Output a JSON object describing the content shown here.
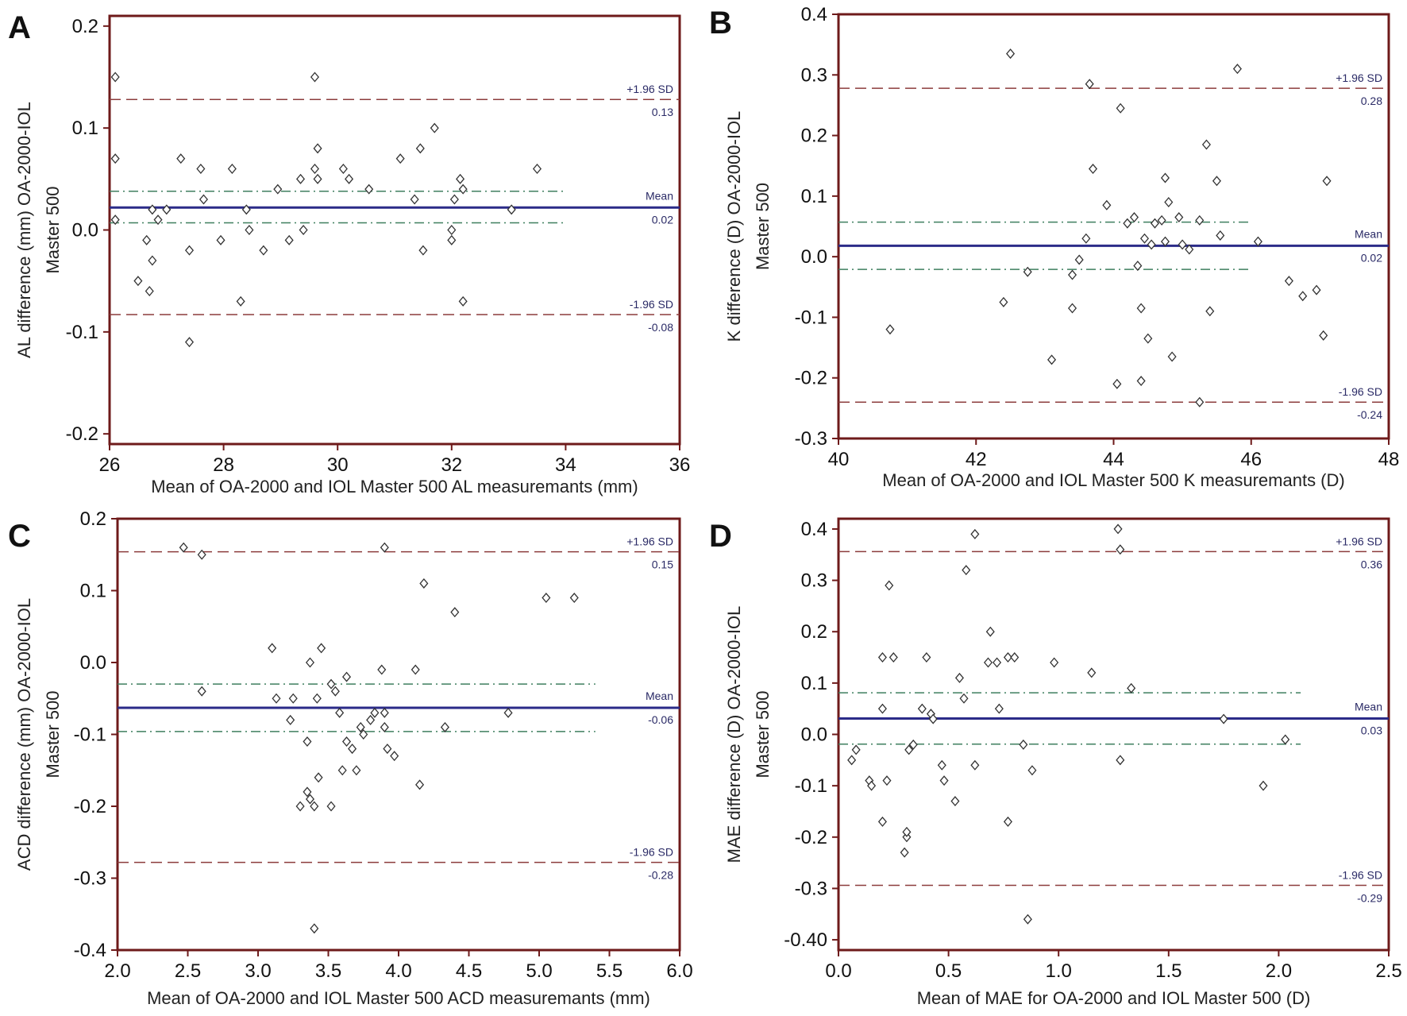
{
  "figure": {
    "panels": [
      "A",
      "B",
      "C",
      "D"
    ]
  },
  "chart_data": [
    {
      "panel": "A",
      "type": "scatter",
      "xlabel": "Mean of OA-2000 and IOL Master 500 AL measuremants (mm)",
      "ylabel": [
        "AL difference (mm) OA-2000-IOL",
        "Master 500"
      ],
      "xlim": [
        26,
        36
      ],
      "ylim": [
        -0.21,
        0.21
      ],
      "xticks": [
        26,
        28,
        30,
        32,
        34,
        36
      ],
      "yticks": [
        0.2,
        0.1,
        0.0,
        -0.1,
        -0.2
      ],
      "ytick_labels": [
        "0.2",
        "0.1",
        "0.0",
        "-0.1",
        "-0.2"
      ],
      "xtick_labels": [
        "26",
        "28",
        "30",
        "32",
        "34",
        "36"
      ],
      "mean": {
        "value": 0.022,
        "label": "Mean",
        "value_label": "0.02",
        "ci": [
          0.038,
          0.007
        ],
        "ci_x_end": 34
      },
      "upper_loa": {
        "value": 0.128,
        "label": "+1.96 SD",
        "value_label": "0.13"
      },
      "lower_loa": {
        "value": -0.083,
        "label": "-1.96 SD",
        "value_label": "-0.08"
      },
      "points": [
        [
          26.1,
          0.15
        ],
        [
          26.1,
          0.07
        ],
        [
          26.1,
          0.01
        ],
        [
          26.5,
          -0.05
        ],
        [
          26.65,
          -0.01
        ],
        [
          26.7,
          -0.06
        ],
        [
          26.75,
          0.02
        ],
        [
          26.75,
          -0.03
        ],
        [
          26.85,
          0.01
        ],
        [
          27.0,
          0.02
        ],
        [
          27.25,
          0.07
        ],
        [
          27.4,
          -0.02
        ],
        [
          27.4,
          -0.11
        ],
        [
          27.6,
          0.06
        ],
        [
          27.65,
          0.03
        ],
        [
          27.95,
          -0.01
        ],
        [
          28.15,
          0.06
        ],
        [
          28.3,
          -0.07
        ],
        [
          28.4,
          0.02
        ],
        [
          28.45,
          0.0
        ],
        [
          28.7,
          -0.02
        ],
        [
          28.95,
          0.04
        ],
        [
          29.15,
          -0.01
        ],
        [
          29.35,
          0.05
        ],
        [
          29.4,
          0.0
        ],
        [
          29.6,
          0.06
        ],
        [
          29.6,
          0.15
        ],
        [
          29.65,
          0.08
        ],
        [
          29.65,
          0.05
        ],
        [
          30.1,
          0.06
        ],
        [
          30.2,
          0.05
        ],
        [
          30.55,
          0.04
        ],
        [
          31.1,
          0.07
        ],
        [
          31.35,
          0.03
        ],
        [
          31.45,
          0.08
        ],
        [
          31.5,
          -0.02
        ],
        [
          31.7,
          0.1
        ],
        [
          32.0,
          0.0
        ],
        [
          32.0,
          -0.01
        ],
        [
          32.05,
          0.03
        ],
        [
          32.15,
          0.05
        ],
        [
          32.2,
          0.04
        ],
        [
          32.2,
          -0.07
        ],
        [
          33.05,
          0.02
        ],
        [
          33.5,
          0.06
        ]
      ]
    },
    {
      "panel": "B",
      "type": "scatter",
      "xlabel": "Mean of OA-2000 and IOL Master 500 K measuremants (D)",
      "ylabel": [
        "K difference (D) OA-2000-IOL",
        "Master 500"
      ],
      "xlim": [
        40,
        48
      ],
      "ylim": [
        -0.3,
        0.4
      ],
      "xticks": [
        40,
        42,
        44,
        46,
        48
      ],
      "yticks": [
        0.4,
        0.3,
        0.2,
        0.1,
        0.0,
        -0.1,
        -0.2,
        -0.3
      ],
      "ytick_labels": [
        "0.4",
        "0.3",
        "0.2",
        "0.1",
        "0.0",
        "-0.1",
        "-0.2",
        "-0.3"
      ],
      "xtick_labels": [
        "40",
        "42",
        "44",
        "46",
        "48"
      ],
      "mean": {
        "value": 0.018,
        "label": "Mean",
        "value_label": "0.02",
        "ci": [
          0.057,
          -0.021
        ],
        "ci_x_end": 46
      },
      "upper_loa": {
        "value": 0.278,
        "label": "+1.96 SD",
        "value_label": "0.28"
      },
      "lower_loa": {
        "value": -0.24,
        "label": "-1.96 SD",
        "value_label": "-0.24"
      },
      "points": [
        [
          40.75,
          -0.12
        ],
        [
          42.4,
          -0.075
        ],
        [
          42.5,
          0.335
        ],
        [
          42.75,
          -0.025
        ],
        [
          43.1,
          -0.17
        ],
        [
          43.4,
          -0.085
        ],
        [
          43.4,
          -0.03
        ],
        [
          43.5,
          -0.005
        ],
        [
          43.6,
          0.03
        ],
        [
          43.65,
          0.285
        ],
        [
          43.7,
          0.145
        ],
        [
          43.9,
          0.085
        ],
        [
          44.05,
          -0.21
        ],
        [
          44.1,
          0.245
        ],
        [
          44.2,
          0.055
        ],
        [
          44.3,
          0.065
        ],
        [
          44.35,
          -0.015
        ],
        [
          44.4,
          -0.085
        ],
        [
          44.4,
          -0.205
        ],
        [
          44.45,
          0.03
        ],
        [
          44.5,
          -0.135
        ],
        [
          44.55,
          0.02
        ],
        [
          44.6,
          0.055
        ],
        [
          44.7,
          0.06
        ],
        [
          44.75,
          0.13
        ],
        [
          44.75,
          0.025
        ],
        [
          44.8,
          0.09
        ],
        [
          44.85,
          -0.165
        ],
        [
          44.95,
          0.065
        ],
        [
          45.0,
          0.02
        ],
        [
          45.1,
          0.012
        ],
        [
          45.25,
          0.06
        ],
        [
          45.25,
          -0.24
        ],
        [
          45.35,
          0.185
        ],
        [
          45.4,
          -0.09
        ],
        [
          45.5,
          0.125
        ],
        [
          45.55,
          0.035
        ],
        [
          45.8,
          0.31
        ],
        [
          46.1,
          0.025
        ],
        [
          46.55,
          -0.04
        ],
        [
          46.75,
          -0.065
        ],
        [
          46.95,
          -0.055
        ],
        [
          47.05,
          -0.13
        ],
        [
          47.1,
          0.125
        ]
      ]
    },
    {
      "panel": "C",
      "type": "scatter",
      "xlabel": "Mean of OA-2000 and IOL Master 500 ACD measuremants (mm)",
      "ylabel": [
        "ACD difference (mm) OA-2000-IOL",
        "Master 500"
      ],
      "xlim": [
        2.0,
        6.0
      ],
      "ylim": [
        -0.4,
        0.2
      ],
      "xticks": [
        2.0,
        2.5,
        3.0,
        3.5,
        4.0,
        4.5,
        5.0,
        5.5,
        6.0
      ],
      "yticks": [
        0.2,
        0.1,
        0.0,
        -0.1,
        -0.2,
        -0.3,
        -0.4
      ],
      "ytick_labels": [
        "0.2",
        "0.1",
        "0.0",
        "-0.1",
        "-0.2",
        "-0.3",
        "-0.4"
      ],
      "xtick_labels": [
        "2.0",
        "2.5",
        "3.0",
        "3.5",
        "4.0",
        "4.5",
        "5.0",
        "5.5",
        "6.0"
      ],
      "mean": {
        "value": -0.063,
        "label": "Mean",
        "value_label": "-0.06",
        "ci": [
          -0.03,
          -0.096
        ],
        "ci_x_end": 5.4
      },
      "upper_loa": {
        "value": 0.154,
        "label": "+1.96 SD",
        "value_label": "0.15"
      },
      "lower_loa": {
        "value": -0.278,
        "label": "-1.96 SD",
        "value_label": "-0.28"
      },
      "points": [
        [
          2.47,
          0.16
        ],
        [
          2.6,
          0.15
        ],
        [
          2.6,
          -0.04
        ],
        [
          3.1,
          0.02
        ],
        [
          3.13,
          -0.05
        ],
        [
          3.23,
          -0.08
        ],
        [
          3.25,
          -0.05
        ],
        [
          3.3,
          -0.2
        ],
        [
          3.35,
          -0.11
        ],
        [
          3.35,
          -0.18
        ],
        [
          3.37,
          0.0
        ],
        [
          3.37,
          -0.19
        ],
        [
          3.4,
          -0.2
        ],
        [
          3.4,
          -0.37
        ],
        [
          3.42,
          -0.05
        ],
        [
          3.43,
          -0.16
        ],
        [
          3.45,
          0.02
        ],
        [
          3.52,
          -0.03
        ],
        [
          3.52,
          -0.2
        ],
        [
          3.55,
          -0.04
        ],
        [
          3.58,
          -0.07
        ],
        [
          3.6,
          -0.15
        ],
        [
          3.63,
          -0.02
        ],
        [
          3.63,
          -0.11
        ],
        [
          3.67,
          -0.12
        ],
        [
          3.7,
          -0.15
        ],
        [
          3.73,
          -0.09
        ],
        [
          3.75,
          -0.1
        ],
        [
          3.8,
          -0.08
        ],
        [
          3.83,
          -0.07
        ],
        [
          3.88,
          -0.01
        ],
        [
          3.9,
          -0.09
        ],
        [
          3.9,
          -0.07
        ],
        [
          3.9,
          0.16
        ],
        [
          3.92,
          -0.12
        ],
        [
          3.97,
          -0.13
        ],
        [
          4.12,
          -0.01
        ],
        [
          4.15,
          -0.17
        ],
        [
          4.18,
          0.11
        ],
        [
          4.33,
          -0.09
        ],
        [
          4.4,
          0.07
        ],
        [
          4.78,
          -0.07
        ],
        [
          5.05,
          0.09
        ],
        [
          5.25,
          0.09
        ]
      ]
    },
    {
      "panel": "D",
      "type": "scatter",
      "xlabel": "Mean of MAE for OA-2000 and IOL Master 500 (D)",
      "ylabel": [
        "MAE difference (D) OA-2000-IOL",
        "Master 500"
      ],
      "xlim": [
        0.0,
        2.5
      ],
      "ylim": [
        -0.42,
        0.42
      ],
      "xticks": [
        0.0,
        0.5,
        1.0,
        1.5,
        2.0,
        2.5
      ],
      "yticks": [
        0.4,
        0.3,
        0.2,
        0.1,
        0.0,
        -0.1,
        -0.2,
        -0.3,
        -0.4
      ],
      "ytick_labels": [
        "0.4",
        "0.3",
        "0.2",
        "0.1",
        "0.0",
        "-0.1",
        "-0.2",
        "-0.3",
        "-0.40"
      ],
      "xtick_labels": [
        "0.0",
        "0.5",
        "1.0",
        "1.5",
        "2.0",
        "2.5"
      ],
      "mean": {
        "value": 0.031,
        "label": "Mean",
        "value_label": "0.03",
        "ci": [
          0.081,
          -0.019
        ],
        "ci_x_end": 2.1
      },
      "upper_loa": {
        "value": 0.356,
        "label": "+1.96 SD",
        "value_label": "0.36"
      },
      "lower_loa": {
        "value": -0.294,
        "label": "-1.96 SD",
        "value_label": "-0.29"
      },
      "points": [
        [
          0.06,
          -0.05
        ],
        [
          0.08,
          -0.03
        ],
        [
          0.14,
          -0.09
        ],
        [
          0.15,
          -0.1
        ],
        [
          0.2,
          0.15
        ],
        [
          0.2,
          0.05
        ],
        [
          0.2,
          -0.17
        ],
        [
          0.22,
          -0.09
        ],
        [
          0.23,
          0.29
        ],
        [
          0.25,
          0.15
        ],
        [
          0.3,
          -0.23
        ],
        [
          0.31,
          -0.2
        ],
        [
          0.31,
          -0.19
        ],
        [
          0.32,
          -0.03
        ],
        [
          0.34,
          -0.02
        ],
        [
          0.38,
          0.05
        ],
        [
          0.4,
          0.15
        ],
        [
          0.42,
          0.04
        ],
        [
          0.43,
          0.03
        ],
        [
          0.47,
          -0.06
        ],
        [
          0.48,
          -0.09
        ],
        [
          0.53,
          -0.13
        ],
        [
          0.55,
          0.11
        ],
        [
          0.57,
          0.07
        ],
        [
          0.58,
          0.32
        ],
        [
          0.62,
          0.39
        ],
        [
          0.62,
          -0.06
        ],
        [
          0.68,
          0.14
        ],
        [
          0.69,
          0.2
        ],
        [
          0.72,
          0.14
        ],
        [
          0.73,
          0.05
        ],
        [
          0.77,
          0.15
        ],
        [
          0.77,
          -0.17
        ],
        [
          0.8,
          0.15
        ],
        [
          0.84,
          -0.02
        ],
        [
          0.86,
          -0.36
        ],
        [
          0.88,
          -0.07
        ],
        [
          0.98,
          0.14
        ],
        [
          1.15,
          0.12
        ],
        [
          1.27,
          0.4
        ],
        [
          1.28,
          0.36
        ],
        [
          1.28,
          -0.05
        ],
        [
          1.33,
          0.09
        ],
        [
          1.75,
          0.03
        ],
        [
          1.93,
          -0.1
        ],
        [
          2.03,
          -0.01
        ]
      ]
    }
  ],
  "colors": {
    "frame": "#6e1a1a",
    "mean_line": "#2b2b88",
    "loa_line": "#8c3c3c",
    "ci_line": "#3f7f5f",
    "marker": "#333333",
    "ref_text": "#2a2a66"
  }
}
